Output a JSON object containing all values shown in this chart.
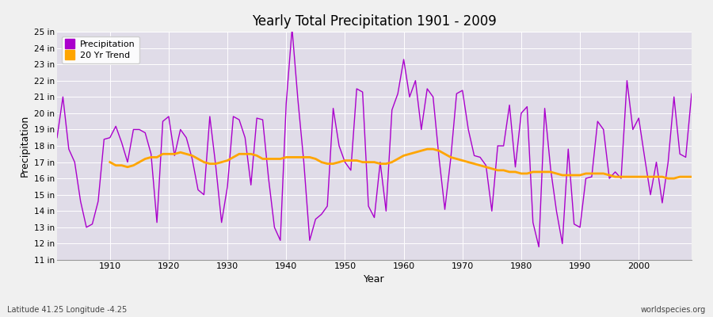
{
  "title": "Yearly Total Precipitation 1901 - 2009",
  "xlabel": "Year",
  "ylabel": "Precipitation",
  "subtitle_left": "Latitude 41.25 Longitude -4.25",
  "subtitle_right": "worldspecies.org",
  "precip_color": "#AA00CC",
  "trend_color": "#FFA500",
  "fig_bg_color": "#F0F0F0",
  "plot_bg_color": "#E0DCE8",
  "grid_color": "#FFFFFF",
  "ylim": [
    11,
    25
  ],
  "ytick_labels": [
    "11 in",
    "12 in",
    "13 in",
    "14 in",
    "15 in",
    "16 in",
    "17 in",
    "18 in",
    "19 in",
    "20 in",
    "21 in",
    "22 in",
    "23 in",
    "24 in",
    "25 in"
  ],
  "ytick_values": [
    11,
    12,
    13,
    14,
    15,
    16,
    17,
    18,
    19,
    20,
    21,
    22,
    23,
    24,
    25
  ],
  "years": [
    1901,
    1902,
    1903,
    1904,
    1905,
    1906,
    1907,
    1908,
    1909,
    1910,
    1911,
    1912,
    1913,
    1914,
    1915,
    1916,
    1917,
    1918,
    1919,
    1920,
    1921,
    1922,
    1923,
    1924,
    1925,
    1926,
    1927,
    1928,
    1929,
    1930,
    1931,
    1932,
    1933,
    1934,
    1935,
    1936,
    1937,
    1938,
    1939,
    1940,
    1941,
    1942,
    1943,
    1944,
    1945,
    1946,
    1947,
    1948,
    1949,
    1950,
    1951,
    1952,
    1953,
    1954,
    1955,
    1956,
    1957,
    1958,
    1959,
    1960,
    1961,
    1962,
    1963,
    1964,
    1965,
    1966,
    1967,
    1968,
    1969,
    1970,
    1971,
    1972,
    1973,
    1974,
    1975,
    1976,
    1977,
    1978,
    1979,
    1980,
    1981,
    1982,
    1983,
    1984,
    1985,
    1986,
    1987,
    1988,
    1989,
    1990,
    1991,
    1992,
    1993,
    1994,
    1995,
    1996,
    1997,
    1998,
    1999,
    2000,
    2001,
    2002,
    2003,
    2004,
    2005,
    2006,
    2007,
    2008,
    2009
  ],
  "precipitation": [
    18.5,
    21.0,
    17.8,
    17.0,
    14.6,
    13.0,
    13.2,
    14.6,
    18.4,
    18.5,
    19.2,
    18.2,
    17.0,
    19.0,
    19.0,
    18.8,
    17.5,
    13.3,
    19.5,
    19.8,
    17.4,
    19.0,
    18.5,
    17.2,
    15.3,
    15.0,
    19.8,
    16.8,
    13.3,
    15.5,
    19.8,
    19.6,
    18.5,
    15.6,
    19.7,
    19.6,
    16.0,
    13.0,
    12.2,
    20.6,
    25.2,
    20.8,
    17.0,
    12.2,
    13.5,
    13.8,
    14.3,
    20.3,
    18.0,
    17.0,
    16.5,
    21.5,
    21.3,
    14.3,
    13.6,
    17.0,
    14.0,
    20.2,
    21.2,
    23.3,
    21.0,
    22.0,
    19.0,
    21.5,
    21.0,
    17.3,
    14.1,
    17.2,
    21.2,
    21.4,
    19.0,
    17.4,
    17.3,
    16.8,
    14.0,
    18.0,
    18.0,
    20.5,
    16.7,
    20.0,
    20.4,
    13.3,
    11.8,
    20.3,
    16.6,
    14.0,
    12.0,
    17.8,
    13.2,
    13.0,
    16.0,
    16.1,
    19.5,
    19.0,
    16.0,
    16.4,
    16.0,
    22.0,
    19.0,
    19.7,
    17.3,
    15.0,
    17.0,
    14.5,
    17.0,
    21.0,
    17.5,
    17.3,
    21.2
  ],
  "trend_years": [
    1910,
    1911,
    1912,
    1913,
    1914,
    1915,
    1916,
    1917,
    1918,
    1919,
    1920,
    1921,
    1922,
    1923,
    1924,
    1925,
    1926,
    1927,
    1928,
    1929,
    1930,
    1931,
    1932,
    1933,
    1934,
    1935,
    1936,
    1937,
    1938,
    1939,
    1940,
    1941,
    1942,
    1943,
    1944,
    1945,
    1946,
    1947,
    1948,
    1949,
    1950,
    1951,
    1952,
    1953,
    1954,
    1955,
    1956,
    1957,
    1958,
    1959,
    1960,
    1961,
    1962,
    1963,
    1964,
    1965,
    1966,
    1967,
    1968,
    1969,
    1970,
    1971,
    1972,
    1973,
    1974,
    1975,
    1976,
    1977,
    1978,
    1979,
    1980,
    1981,
    1982,
    1983,
    1984,
    1985,
    1986,
    1987,
    1988,
    1989,
    1990,
    1991,
    1992,
    1993,
    1994,
    1995,
    1996,
    1997,
    1998,
    1999,
    2000,
    2001,
    2002,
    2003,
    2004,
    2005,
    2006,
    2007,
    2008,
    2009
  ],
  "trend": [
    17.0,
    16.8,
    16.8,
    16.7,
    16.8,
    17.0,
    17.2,
    17.3,
    17.3,
    17.5,
    17.5,
    17.5,
    17.6,
    17.5,
    17.4,
    17.2,
    17.0,
    16.9,
    16.9,
    17.0,
    17.1,
    17.3,
    17.5,
    17.5,
    17.5,
    17.4,
    17.2,
    17.2,
    17.2,
    17.2,
    17.3,
    17.3,
    17.3,
    17.3,
    17.3,
    17.2,
    17.0,
    16.9,
    16.9,
    17.0,
    17.1,
    17.1,
    17.1,
    17.0,
    17.0,
    17.0,
    16.9,
    16.9,
    17.0,
    17.2,
    17.4,
    17.5,
    17.6,
    17.7,
    17.8,
    17.8,
    17.7,
    17.5,
    17.3,
    17.2,
    17.1,
    17.0,
    16.9,
    16.8,
    16.7,
    16.6,
    16.5,
    16.5,
    16.4,
    16.4,
    16.3,
    16.3,
    16.4,
    16.4,
    16.4,
    16.4,
    16.3,
    16.2,
    16.2,
    16.2,
    16.2,
    16.3,
    16.3,
    16.3,
    16.3,
    16.2,
    16.1,
    16.1,
    16.1,
    16.1,
    16.1,
    16.1,
    16.1,
    16.1,
    16.1,
    16.0,
    16.0,
    16.1,
    16.1,
    16.1
  ],
  "xticks": [
    1910,
    1920,
    1930,
    1940,
    1950,
    1960,
    1970,
    1980,
    1990,
    2000
  ],
  "xlim": [
    1901,
    2009
  ]
}
